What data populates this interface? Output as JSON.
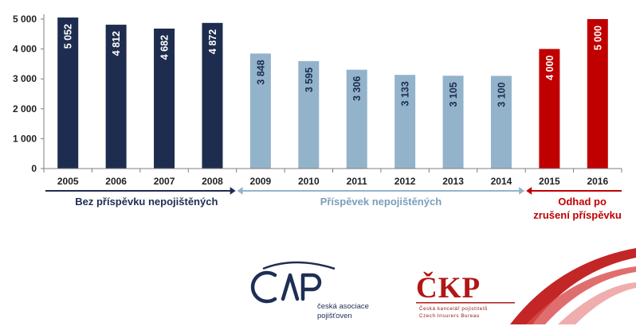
{
  "chart_data": {
    "type": "bar",
    "categories": [
      "2005",
      "2006",
      "2007",
      "2008",
      "2009",
      "2010",
      "2011",
      "2012",
      "2013",
      "2014",
      "2015",
      "2016"
    ],
    "values": [
      5052,
      4812,
      4682,
      4872,
      3848,
      3595,
      3306,
      3133,
      3105,
      3100,
      4000,
      5000
    ],
    "value_labels": [
      "5 052",
      "4 812",
      "4 682",
      "4 872",
      "3 848",
      "3 595",
      "3 306",
      "3 133",
      "3 105",
      "3 100",
      "4 000",
      "5 000"
    ],
    "bar_groups": [
      0,
      0,
      0,
      0,
      1,
      1,
      1,
      1,
      1,
      1,
      2,
      2
    ],
    "group_colors": [
      "#1e2d4f",
      "#93b3cb",
      "#c00000"
    ],
    "group_label_colors": [
      "#ffffff",
      "#1e2d4f",
      "#ffffff"
    ],
    "ylim": [
      0,
      5000
    ],
    "yticks": [
      0,
      1000,
      2000,
      3000,
      4000,
      5000
    ],
    "ytick_labels": [
      "0",
      "1 000",
      "2 000",
      "3 000",
      "4 000",
      "5 000"
    ],
    "grid": false,
    "legend": "none",
    "title": "",
    "xlabel": "",
    "ylabel": "",
    "periods": [
      {
        "label": "Bez příspěvku nepojištěných",
        "color": "#1e2d4f",
        "from": "2005",
        "to": "2008"
      },
      {
        "label": "Příspěvek nepojištěných",
        "color": "#7a9fba",
        "from": "2009",
        "to": "2014"
      },
      {
        "label": "Odhad po",
        "label2": "zrušení příspěvku",
        "color": "#c00000",
        "from": "2015",
        "to": "2016"
      }
    ]
  },
  "logos": {
    "cap": {
      "line1": "česká asociace",
      "line2": "pojišťoven",
      "color": "#1e2e55"
    },
    "ckp": {
      "mark": "ČKP",
      "line1": "Česká kancelář pojistitelů",
      "line2": "Czech Insurers Bureau",
      "color": "#b01717"
    }
  }
}
